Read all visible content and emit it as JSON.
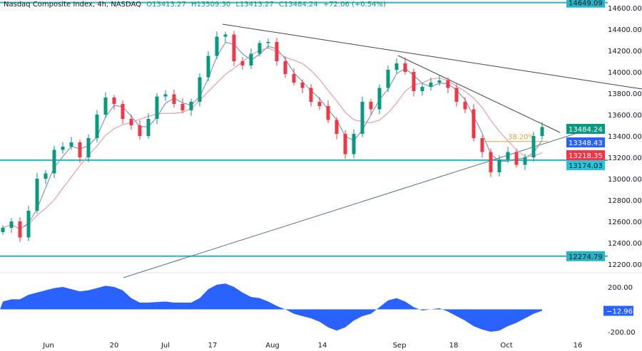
{
  "header": {
    "symbol": "Nasdaq Composite Index, 4h, NASDAQ",
    "open": "O13413.27",
    "high": "H13509.30",
    "low": "L13413.27",
    "close": "C13484.24",
    "change": "+72.06 (+0.54%)"
  },
  "colors": {
    "up": "#089981",
    "down": "#f23645",
    "level_line": "#26b5c4",
    "ma_fast": "#7b9cc7",
    "ma_slow": "#e8a0a5",
    "trendline": "#434651",
    "fib": "#e0a040",
    "oscillator": "#2962ff"
  },
  "chart_data": [
    {
      "type": "candlestick",
      "ylim": [
        12100,
        14700
      ],
      "y_ticks": [
        "14600.00",
        "14400.00",
        "14200.00",
        "14000.00",
        "13800.00",
        "13600.00",
        "13400.00",
        "13200.00",
        "13000.00",
        "12800.00",
        "12600.00",
        "12400.00",
        "12200.00"
      ],
      "x_ticks": [
        "Jun",
        "20",
        "Jul",
        "17",
        "Aug",
        "14",
        "Sep",
        "18",
        "Oct",
        "16"
      ],
      "closes": [
        12540,
        12600,
        12450,
        12700,
        13000,
        13050,
        13270,
        13300,
        13340,
        13200,
        13380,
        13600,
        13760,
        13700,
        13560,
        13500,
        13400,
        13560,
        13770,
        13790,
        13700,
        13640,
        13720,
        13950,
        14150,
        14330,
        14350,
        14100,
        14060,
        14170,
        14270,
        14280,
        14100,
        13980,
        13900,
        13850,
        13720,
        13680,
        13550,
        13420,
        13230,
        13420,
        13720,
        13650,
        13850,
        14020,
        14080,
        14000,
        13820,
        13860,
        13900,
        13920,
        13850,
        13720,
        13650,
        13380,
        13250,
        13060,
        13180,
        13250,
        13130,
        13200,
        13400,
        13484.24
      ],
      "horizontal_levels": [
        {
          "label": "14649.09",
          "value": 14649.09
        },
        {
          "label": "13174.03",
          "value": 13174.03
        },
        {
          "label": "12274.79",
          "value": 12274.79
        }
      ],
      "price_labels": [
        {
          "label": "13484.24",
          "value": 13484.24,
          "color": "#089981"
        },
        {
          "label": "13348.43",
          "value": 13348.43,
          "color": "#2962ff"
        },
        {
          "label": "13218.35",
          "value": 13218.35,
          "color": "#f23645"
        },
        {
          "label": "13174.03",
          "value": 13174.03,
          "color": "#26c6da"
        }
      ],
      "fib_label": "38.20%",
      "fib_value": 13348.43
    },
    {
      "type": "area",
      "ylim": [
        -300,
        300
      ],
      "y_ticks": [
        "200.00",
        "-200.00"
      ],
      "current_label": "−12.96",
      "values": [
        70,
        90,
        90,
        130,
        150,
        170,
        190,
        200,
        180,
        160,
        170,
        190,
        210,
        200,
        170,
        100,
        60,
        60,
        65,
        70,
        60,
        60,
        60,
        100,
        180,
        220,
        230,
        200,
        150,
        110,
        100,
        70,
        30,
        0,
        -40,
        -60,
        -80,
        -110,
        -160,
        -190,
        -160,
        -100,
        -60,
        -40,
        20,
        80,
        100,
        70,
        20,
        -10,
        0,
        10,
        -20,
        -60,
        -100,
        -150,
        -180,
        -200,
        -190,
        -150,
        -120,
        -80,
        -40,
        -12.96
      ]
    }
  ]
}
